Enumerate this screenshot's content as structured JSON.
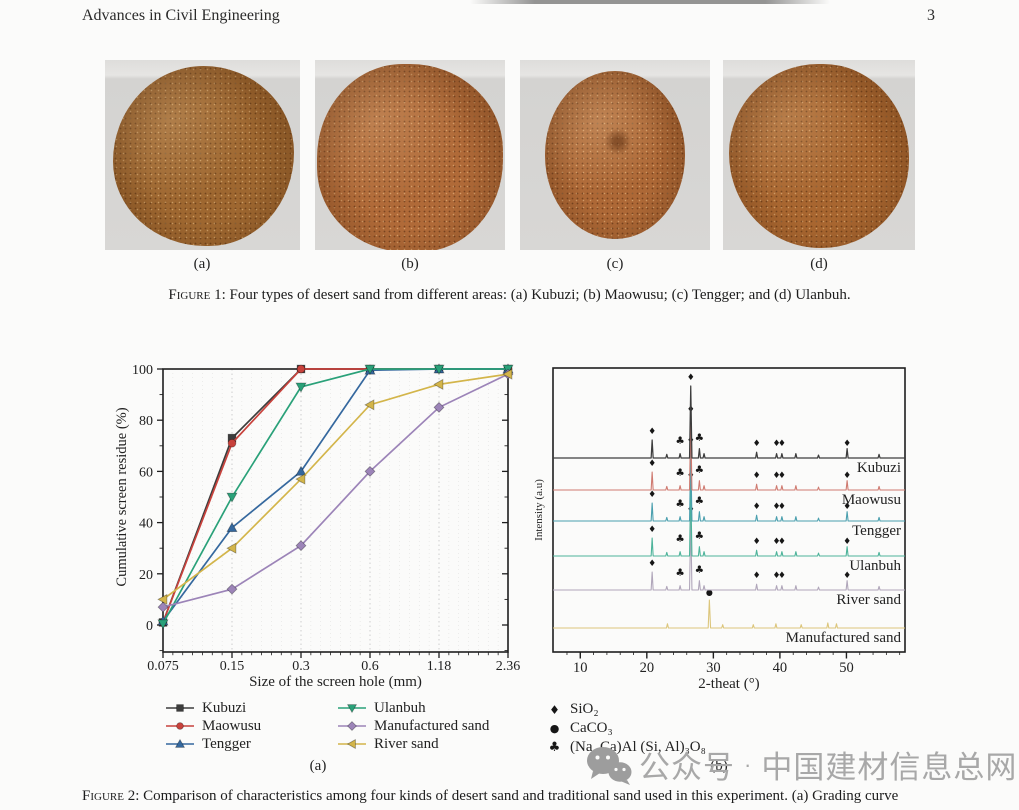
{
  "header": {
    "journal_title": "Advances in Civil Engineering",
    "page_number": "3"
  },
  "figure1": {
    "photos": [
      {
        "label": "(a)",
        "area": "Kubuzi"
      },
      {
        "label": "(b)",
        "area": "Maowusu"
      },
      {
        "label": "(c)",
        "area": "Tengger"
      },
      {
        "label": "(d)",
        "area": "Ulanbuh"
      }
    ],
    "caption_label": "Figure 1:",
    "caption_text": "Four types of desert sand from different areas: (a) Kubuzi; (b) Maowusu; (c) Tengger; and (d) Ulanbuh."
  },
  "figure2": {
    "sublabel_a": "(a)",
    "sublabel_b": "(b)",
    "caption_label": "Figure 2:",
    "caption_text": "Comparison of characteristics among four kinds of desert sand and traditional sand used in this experiment. (a) Grading curve"
  },
  "watermark": {
    "icon": "wechat-icon",
    "text_left": "公众号",
    "separator": "·",
    "text_right": "中国建材信息总网"
  },
  "chart_data": [
    {
      "type": "line",
      "panel": "a",
      "xlabel": "Size of the screen hole (mm)",
      "ylabel": "Cumulative screen residue (%)",
      "categories": [
        "0.075",
        "0.15",
        "0.3",
        "0.6",
        "1.18",
        "2.36"
      ],
      "ylim": [
        0,
        100
      ],
      "yticks": [
        0,
        20,
        40,
        60,
        80,
        100
      ],
      "grid": "vertical-dotted-minor",
      "legend_position": "below",
      "series": [
        {
          "name": "Kubuzi",
          "color": "#3c3c3c",
          "marker": "square",
          "values": [
            1,
            73,
            100,
            100,
            100,
            100
          ]
        },
        {
          "name": "Maowusu",
          "color": "#c8423c",
          "marker": "circle",
          "values": [
            1,
            71,
            100,
            100,
            100,
            100
          ]
        },
        {
          "name": "Tengger",
          "color": "#35689e",
          "marker": "triangle-up",
          "values": [
            1.5,
            38,
            60,
            99.5,
            100,
            100
          ]
        },
        {
          "name": "Ulanbuh",
          "color": "#2aa179",
          "marker": "triangle-down",
          "values": [
            0.5,
            50,
            93,
            100,
            100,
            100
          ]
        },
        {
          "name": "Manufactured sand",
          "color": "#9c84b8",
          "marker": "diamond",
          "values": [
            7,
            14,
            31,
            60,
            85,
            98
          ]
        },
        {
          "name": "River sand",
          "color": "#d3b54a",
          "marker": "triangle-left",
          "values": [
            10,
            30,
            57,
            86,
            94,
            98
          ]
        }
      ],
      "legend_columns": [
        [
          "Kubuzi",
          "Maowusu",
          "Tengger"
        ],
        [
          "Ulanbuh",
          "Manufactured sand",
          "River sand"
        ]
      ]
    },
    {
      "type": "xrd-stack",
      "panel": "b",
      "xlabel": "2-theat (°)",
      "ylabel": "Intensity (a.u)",
      "xlim": [
        5.9,
        58.8
      ],
      "xticks": [
        10,
        20,
        30,
        40,
        50
      ],
      "traces": [
        {
          "name": "Kubuzi",
          "color": "#3d3d3d",
          "phase": "quartz"
        },
        {
          "name": "Maowusu",
          "color": "#cf7a70",
          "phase": "quartz"
        },
        {
          "name": "Tengger",
          "color": "#4a9fae",
          "phase": "quartz"
        },
        {
          "name": "Ulanbuh",
          "color": "#4db39a",
          "phase": "quartz"
        },
        {
          "name": "River sand",
          "color": "#b0a6ba",
          "phase": "quartz"
        },
        {
          "name": "Manufactured sand",
          "color": "#dcc67c",
          "phase": "calcite"
        }
      ],
      "phases": {
        "quartz": {
          "peaks": [
            {
              "x": 20.8,
              "h": 0.25
            },
            {
              "x": 23.0,
              "h": 0.05
            },
            {
              "x": 25.0,
              "h": 0.06
            },
            {
              "x": 26.6,
              "h": 1.0
            },
            {
              "x": 27.9,
              "h": 0.13
            },
            {
              "x": 28.6,
              "h": 0.06
            },
            {
              "x": 36.5,
              "h": 0.08
            },
            {
              "x": 39.5,
              "h": 0.06
            },
            {
              "x": 40.3,
              "h": 0.06
            },
            {
              "x": 42.4,
              "h": 0.06
            },
            {
              "x": 45.8,
              "h": 0.04
            },
            {
              "x": 50.1,
              "h": 0.13
            },
            {
              "x": 54.9,
              "h": 0.05
            }
          ],
          "annotations": [
            {
              "x": 20.8,
              "symbol": "diamond",
              "dy": 24
            },
            {
              "x": 25.0,
              "symbol": "club",
              "dy": 14
            },
            {
              "x": 26.6,
              "symbol": "diamond",
              "dy": 78
            },
            {
              "x": 27.9,
              "symbol": "club",
              "dy": 17
            },
            {
              "x": 36.5,
              "symbol": "diamond",
              "dy": 12
            },
            {
              "x": 39.5,
              "symbol": "diamond",
              "dy": 12
            },
            {
              "x": 40.3,
              "symbol": "diamond",
              "dy": 12
            },
            {
              "x": 50.1,
              "symbol": "diamond",
              "dy": 12
            }
          ]
        },
        "calcite": {
          "peaks": [
            {
              "x": 23.1,
              "h": 0.15
            },
            {
              "x": 29.4,
              "h": 1.0
            },
            {
              "x": 31.4,
              "h": 0.12
            },
            {
              "x": 36.0,
              "h": 0.12
            },
            {
              "x": 39.4,
              "h": 0.15
            },
            {
              "x": 43.2,
              "h": 0.12
            },
            {
              "x": 47.2,
              "h": 0.18
            },
            {
              "x": 48.5,
              "h": 0.15
            }
          ],
          "annotations": [
            {
              "x": 29.4,
              "symbol": "circle",
              "dy": 33
            }
          ]
        }
      },
      "legend": [
        {
          "symbol": "diamond",
          "label": "SiO₂"
        },
        {
          "symbol": "circle",
          "label": "CaCO₃"
        },
        {
          "symbol": "club",
          "label": "(Na, Ca)Al (Si, Al)₃O₈"
        }
      ]
    }
  ]
}
